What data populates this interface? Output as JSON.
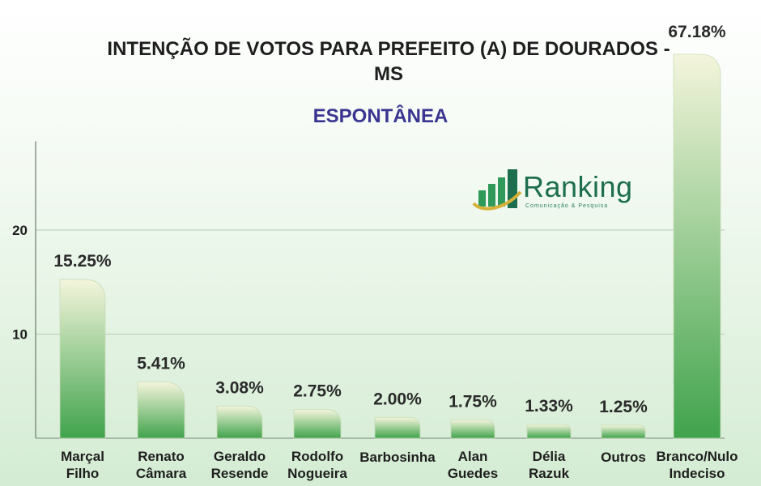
{
  "chart_data": {
    "type": "bar",
    "title": "INTENÇÃO DE VOTOS PARA PREFEITO (A) DE DOURADOS - MS",
    "subtitle": "ESPONTÂNEA",
    "categories": [
      [
        "Marçal",
        "Filho"
      ],
      [
        "Renato",
        "Câmara"
      ],
      [
        "Geraldo",
        "Resende"
      ],
      [
        "Rodolfo",
        "Nogueira"
      ],
      [
        "Barbosinha"
      ],
      [
        "Alan",
        "Guedes"
      ],
      [
        "Délia",
        "Razuk"
      ],
      [
        "Outros"
      ],
      [
        "Branco/Nulo",
        "Indeciso"
      ]
    ],
    "values": [
      15.25,
      5.41,
      3.08,
      2.75,
      2.0,
      1.75,
      1.33,
      1.25,
      67.18
    ],
    "value_labels": [
      "15.25%",
      "5.41%",
      "3.08%",
      "2.75%",
      "2.00%",
      "1.75%",
      "1.33%",
      "1.25%",
      "67.18%"
    ],
    "yticks": [
      10,
      20
    ],
    "ylim": [
      0,
      29
    ],
    "grid": true,
    "gridline_color": "#b5c9b5",
    "bar_gradient": [
      "#f4f5dc",
      "#40a34c"
    ]
  },
  "logo": {
    "name": "Ranking",
    "tagline": "Comunicação & Pesquisa",
    "colors": [
      "#2f9a5a",
      "#1d6e4f",
      "#d6b13a"
    ]
  }
}
